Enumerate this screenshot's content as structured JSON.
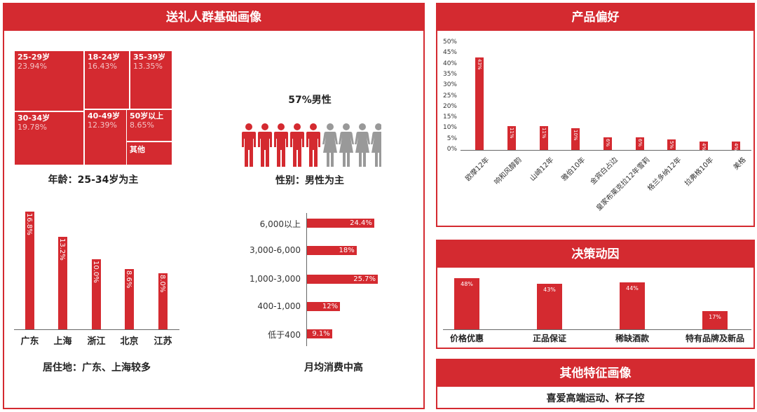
{
  "left_panel": {
    "title": "送礼人群基础画像",
    "age": {
      "caption": "年龄：25-34岁为主",
      "cells": [
        {
          "label": "25-29岁",
          "value": "23.94%"
        },
        {
          "label": "18-24岁",
          "value": "16.43%"
        },
        {
          "label": "35-39岁",
          "value": "13.35%"
        },
        {
          "label": "30-34岁",
          "value": "19.78%"
        },
        {
          "label": "40-49岁",
          "value": "12.39%"
        },
        {
          "label": "50岁以上",
          "value": "8.65%"
        },
        {
          "label": "其他",
          "value": ""
        }
      ]
    },
    "gender": {
      "headline": "57%男性",
      "caption": "性别：男性为主",
      "male_count": 5,
      "female_count": 4,
      "male_color": "#d42a30",
      "female_color": "#999999"
    },
    "residence": {
      "caption": "居住地：广东、上海较多",
      "categories": [
        "广东",
        "上海",
        "浙江",
        "北京",
        "江苏"
      ],
      "values": [
        16.8,
        13.2,
        10.0,
        8.6,
        8.0
      ],
      "labels": [
        "16.8%",
        "13.2%",
        "10.0%",
        "8.6%",
        "8.0%"
      ]
    },
    "spending": {
      "caption": "月均消费中高",
      "categories": [
        "6,000以上",
        "3,000-6,000",
        "1,000-3,000",
        "400-1,000",
        "低于400"
      ],
      "values": [
        24.4,
        18,
        25.7,
        12,
        9.1
      ],
      "labels": [
        "24.4%",
        "18%",
        "25.7%",
        "12%",
        "9.1%"
      ]
    }
  },
  "product_panel": {
    "title": "产品偏好",
    "yticks": [
      "50%",
      "45%",
      "40%",
      "35%",
      "30%",
      "25%",
      "20%",
      "15%",
      "10%",
      "5%",
      "0%"
    ]
  },
  "decision_panel": {
    "title": "决策动因"
  },
  "other_panel": {
    "title": "其他特征画像",
    "text": "喜爱高端运动、杯子控"
  },
  "chart_data": [
    {
      "type": "treemap",
      "categories": [
        "25-29岁",
        "30-34岁",
        "18-24岁",
        "40-49岁",
        "35-39岁",
        "50岁以上",
        "其他"
      ],
      "values": [
        23.94,
        19.78,
        16.43,
        12.39,
        13.35,
        8.65,
        5.46
      ]
    },
    {
      "type": "bar",
      "categories": [
        "广东",
        "上海",
        "浙江",
        "北京",
        "江苏"
      ],
      "values": [
        16.8,
        13.2,
        10.0,
        8.6,
        8.0
      ]
    },
    {
      "type": "bar",
      "orientation": "horizontal",
      "categories": [
        "6,000以上",
        "3,000-6,000",
        "1,000-3,000",
        "400-1,000",
        "低于400"
      ],
      "values": [
        24.4,
        18,
        25.7,
        12,
        9.1
      ]
    },
    {
      "type": "bar",
      "categories": [
        "欧摩12年",
        "响和风醇韵",
        "山崎12年",
        "雅伯10年",
        "金宾白占边",
        "皇家布莱克拉12年雪莉",
        "格兰多纳12年",
        "拉弗格10年",
        "美格"
      ],
      "values": [
        43,
        11,
        11,
        10,
        6,
        6,
        5,
        4,
        4
      ],
      "labels": [
        "43%",
        "11%",
        "11%",
        "10%",
        "6%",
        "6%",
        "5%",
        "4%",
        "4%"
      ],
      "ylim": [
        0,
        50
      ]
    },
    {
      "type": "bar",
      "categories": [
        "价格优惠",
        "正品保证",
        "稀缺酒款",
        "特有品牌及新品"
      ],
      "values": [
        48,
        43,
        44,
        17
      ],
      "labels": [
        "48%",
        "43%",
        "44%",
        "17%"
      ]
    }
  ]
}
